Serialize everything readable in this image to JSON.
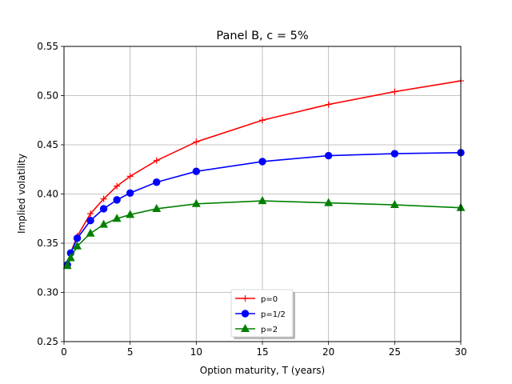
{
  "chart_data": {
    "type": "line",
    "title": "Panel B, c = 5%",
    "xlabel": "Option maturity, T (years)",
    "ylabel": "Implied volatility",
    "xlim": [
      0,
      30
    ],
    "ylim": [
      0.25,
      0.55
    ],
    "xticks": [
      0,
      5,
      10,
      15,
      20,
      25,
      30
    ],
    "yticks": [
      0.25,
      0.3,
      0.35,
      0.4,
      0.45,
      0.5,
      0.55
    ],
    "xtick_labels": [
      "0",
      "5",
      "10",
      "15",
      "20",
      "25",
      "30"
    ],
    "ytick_labels": [
      "0.25",
      "0.30",
      "0.35",
      "0.40",
      "0.45",
      "0.50",
      "0.55"
    ],
    "grid": true,
    "legend_position": "bottom-center",
    "x": [
      0.25,
      0.5,
      1,
      2,
      3,
      4,
      5,
      7,
      10,
      15,
      20,
      25,
      30
    ],
    "series": [
      {
        "name": "p=0",
        "color": "#ff0000",
        "marker": "plus",
        "values": [
          0.328,
          0.34,
          0.357,
          0.38,
          0.395,
          0.408,
          0.418,
          0.434,
          0.453,
          0.475,
          0.491,
          0.504,
          0.515
        ]
      },
      {
        "name": "p=1/2",
        "color": "#0000ff",
        "marker": "circle",
        "values": [
          0.328,
          0.34,
          0.355,
          0.373,
          0.385,
          0.394,
          0.401,
          0.412,
          0.423,
          0.433,
          0.439,
          0.441,
          0.442
        ]
      },
      {
        "name": "p=2",
        "color": "#008000",
        "marker": "triangle",
        "values": [
          0.327,
          0.335,
          0.347,
          0.36,
          0.369,
          0.375,
          0.379,
          0.385,
          0.39,
          0.393,
          0.391,
          0.389,
          0.386
        ]
      }
    ]
  }
}
